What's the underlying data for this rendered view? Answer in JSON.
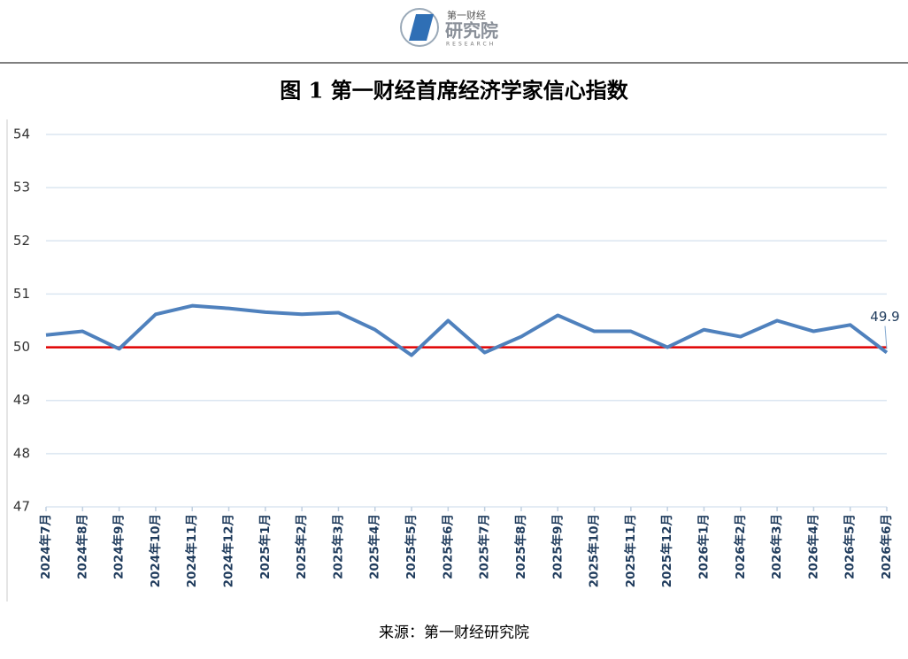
{
  "header": {
    "brand": "第一财经",
    "name": "研究院",
    "subname": "RESEARCH"
  },
  "chart_data": {
    "type": "line",
    "title": "图 1  第一财经首席经济学家信心指数",
    "source": "来源：第一财经研究院",
    "categories": [
      "2024年7月",
      "2024年8月",
      "2024年9月",
      "2024年10月",
      "2024年11月",
      "2024年12月",
      "2025年1月",
      "2025年2月",
      "2025年3月",
      "2025年4月",
      "2025年5月",
      "2025年6月",
      "2025年7月",
      "2025年8月",
      "2025年9月",
      "2025年10月",
      "2025年11月",
      "2025年12月",
      "2026年1月",
      "2026年2月",
      "2026年3月",
      "2026年4月",
      "2026年5月",
      "2026年6月"
    ],
    "series": [
      {
        "color": "#4f81bd",
        "values": [
          50.23,
          50.3,
          49.97,
          50.62,
          50.78,
          50.73,
          50.66,
          50.62,
          50.65,
          50.33,
          49.85,
          50.5,
          49.9,
          50.2,
          50.6,
          50.3,
          50.3,
          50.0,
          50.33,
          50.2,
          50.5,
          50.3,
          50.42,
          49.9
        ]
      }
    ],
    "ylim": [
      47,
      54
    ],
    "yticks": [
      47,
      48,
      49,
      50,
      51,
      52,
      53,
      54
    ],
    "grid": true,
    "reference_line": {
      "value": 50,
      "color": "#e00000"
    },
    "labeled_points": [
      23
    ]
  }
}
